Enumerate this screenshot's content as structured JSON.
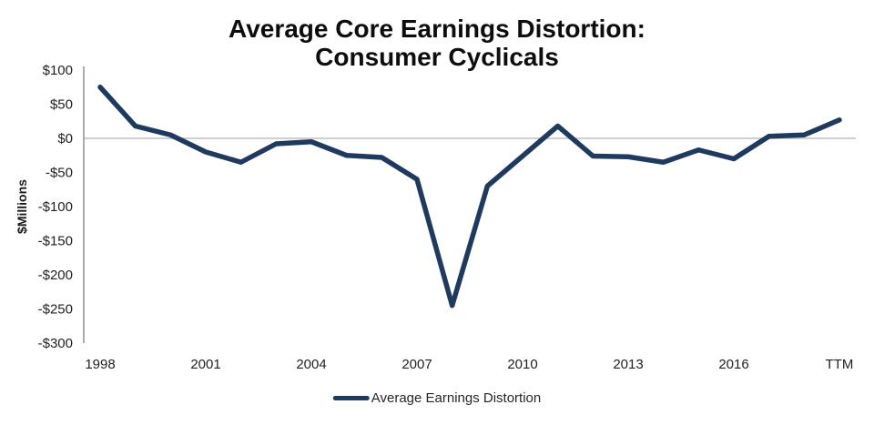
{
  "title": {
    "line1": "Average Core Earnings Distortion:",
    "line2": "Consumer Cyclicals"
  },
  "legend": {
    "label": "Average Earnings Distortion"
  },
  "colors": {
    "line": "#1f3a5f",
    "axis": "#909090",
    "zero_gridline": "#bfbfbf",
    "tick_text": "#212121"
  },
  "chart_data": {
    "type": "line",
    "title": "Average Core Earnings Distortion: Consumer Cyclicals",
    "xlabel": "",
    "ylabel": "$Millions",
    "categories": [
      "1998",
      "1999",
      "2000",
      "2001",
      "2002",
      "2003",
      "2004",
      "2005",
      "2006",
      "2007",
      "2008",
      "2009",
      "2010",
      "2011",
      "2012",
      "2013",
      "2014",
      "2015",
      "2016",
      "2017",
      "2018",
      "TTM"
    ],
    "series": [
      {
        "name": "Average Earnings Distortion",
        "color": "#1f3a5f",
        "values": [
          75,
          18,
          5,
          -20,
          -35,
          -8,
          -5,
          -25,
          -28,
          -60,
          -245,
          -70,
          -26,
          18,
          -26,
          -27,
          -35,
          -17,
          -30,
          3,
          5,
          27
        ]
      }
    ],
    "ylim": [
      -300,
      100
    ],
    "yticks": [
      100,
      50,
      0,
      -50,
      -100,
      -150,
      -200,
      -250,
      -300
    ],
    "ytick_labels": [
      "$100",
      "$50",
      "$0",
      "-$50",
      "-$100",
      "-$150",
      "-$200",
      "-$250",
      "-$300"
    ],
    "xtick_indices": [
      0,
      3,
      6,
      9,
      12,
      15,
      18,
      21
    ],
    "xtick_labels": [
      "1998",
      "2001",
      "2004",
      "2007",
      "2010",
      "2013",
      "2016",
      "TTM"
    ],
    "grid": "zero-line-only",
    "legend_position": "bottom-center"
  }
}
